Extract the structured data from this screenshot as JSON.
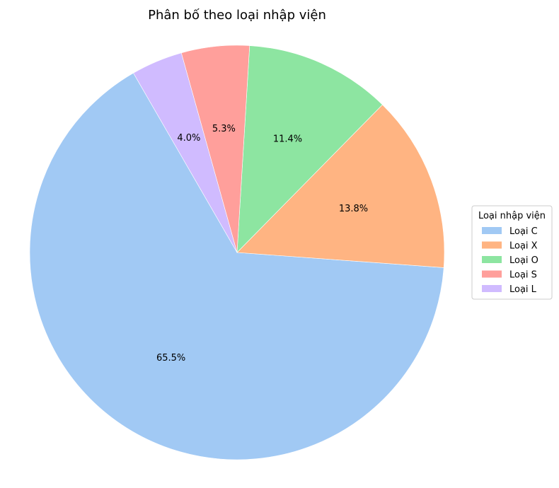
{
  "chart_data": {
    "type": "pie",
    "title": "Phân bố theo loại nhập viện",
    "legend_title": "Loại nhập viện",
    "legend_position": "center-right",
    "start_angle_deg": 120,
    "direction": "counterclockwise",
    "slices": [
      {
        "label": "Loại C",
        "value": 65.5,
        "pct_label": "65.5%",
        "color": "#a1c9f4"
      },
      {
        "label": "Loại X",
        "value": 13.8,
        "pct_label": "13.8%",
        "color": "#ffb482"
      },
      {
        "label": "Loại O",
        "value": 11.4,
        "pct_label": "11.4%",
        "color": "#8de5a1"
      },
      {
        "label": "Loại S",
        "value": 5.3,
        "pct_label": "5.3%",
        "color": "#ff9f9b"
      },
      {
        "label": "Loại L",
        "value": 4.0,
        "pct_label": "4.0%",
        "color": "#d0bbff"
      }
    ]
  }
}
